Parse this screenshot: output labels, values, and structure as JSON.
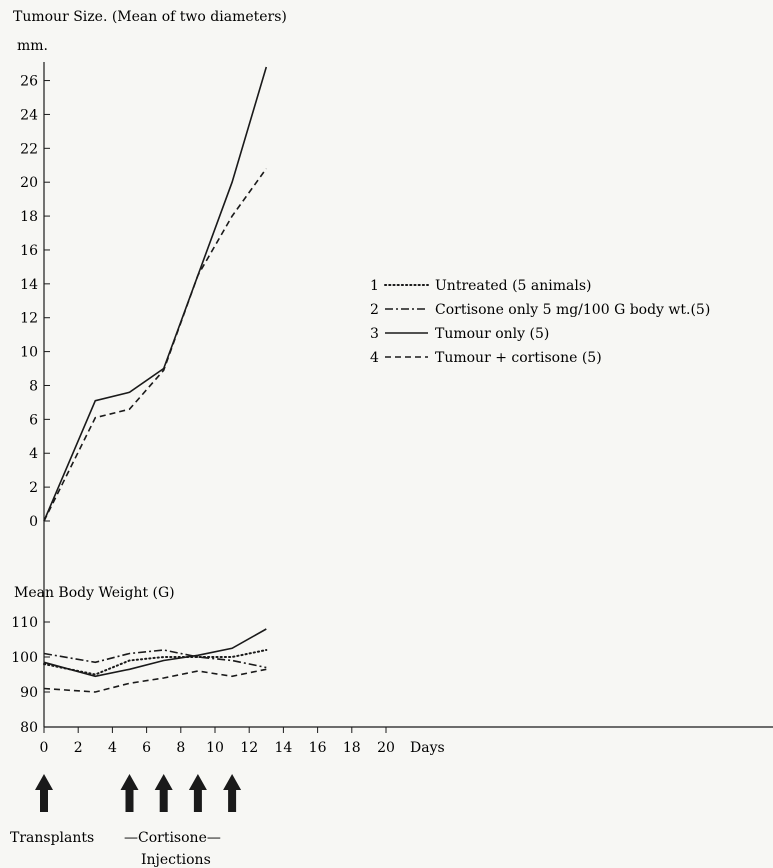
{
  "chart_data": [
    {
      "type": "line",
      "title": "Tumour Size. (Mean of two diameters)",
      "ylabel": "mm.",
      "ylim": [
        0,
        27
      ],
      "yticks": [
        0,
        2,
        4,
        6,
        8,
        10,
        12,
        14,
        16,
        18,
        20,
        22,
        24,
        26
      ],
      "legend_position": "right",
      "series": [
        {
          "name": "Tumour only (5)",
          "style": "solid",
          "x": [
            0,
            3,
            5,
            7,
            11,
            13
          ],
          "values": [
            0,
            7.1,
            7.6,
            9.0,
            20.0,
            26.8
          ]
        },
        {
          "name": "Tumour + cortisone (5)",
          "style": "dashed",
          "x": [
            0,
            3,
            5,
            7,
            9,
            11,
            13
          ],
          "values": [
            0,
            6.1,
            6.6,
            8.9,
            14.5,
            18.0,
            20.8
          ]
        }
      ]
    },
    {
      "type": "line",
      "title": "Mean Body Weight (G)",
      "xlabel": "Days",
      "xlim": [
        0,
        20
      ],
      "xticks": [
        0,
        2,
        4,
        6,
        8,
        10,
        12,
        14,
        16,
        18,
        20
      ],
      "ylim": [
        80,
        110
      ],
      "yticks": [
        80,
        90,
        100,
        110
      ],
      "series": [
        {
          "name": "Untreated (5 animals)",
          "style": "dotted",
          "x": [
            0,
            3,
            5,
            7,
            9,
            11,
            13
          ],
          "values": [
            98,
            95,
            99,
            100,
            100,
            100,
            102
          ]
        },
        {
          "name": "Cortisone only 5 mg/100 G body wt.(5)",
          "style": "dashdot",
          "x": [
            0,
            3,
            5,
            7,
            9,
            11,
            13
          ],
          "values": [
            101,
            98.5,
            101,
            102,
            100,
            99,
            97
          ]
        },
        {
          "name": "Tumour only (5)",
          "style": "solid",
          "x": [
            0,
            3,
            5,
            7,
            9,
            11,
            13
          ],
          "values": [
            98.5,
            94.5,
            96.5,
            99,
            100.5,
            102.5,
            108
          ]
        },
        {
          "name": "Tumour + cortisone (5)",
          "style": "dashed",
          "x": [
            0,
            3,
            5,
            7,
            9,
            11,
            13
          ],
          "values": [
            91,
            90,
            92.5,
            94,
            96,
            94.5,
            96.5
          ]
        }
      ]
    }
  ],
  "legend": [
    {
      "num": "1",
      "label": "Untreated (5 animals)",
      "style": "dotted"
    },
    {
      "num": "2",
      "label": "Cortisone only 5 mg/100 G body wt.(5)",
      "style": "dashdot"
    },
    {
      "num": "3",
      "label": "Tumour only (5)",
      "style": "solid"
    },
    {
      "num": "4",
      "label": "Tumour + cortisone (5)",
      "style": "dashed"
    }
  ],
  "annotations": {
    "transplant_days": [
      0
    ],
    "transplant_label": "Transplants",
    "cortisone_days": [
      5,
      7,
      9,
      11
    ],
    "cortisone_label_1": "—Cortisone—",
    "cortisone_label_2": "Injections"
  },
  "colors": {
    "ink": "#1a1a1a",
    "background": "#f7f7f4"
  }
}
